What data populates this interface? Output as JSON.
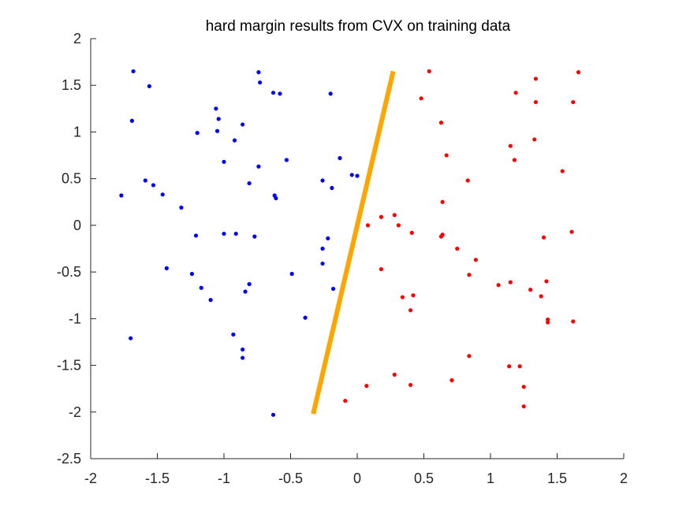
{
  "chart_data": {
    "type": "scatter",
    "title": "hard margin results from CVX on training data",
    "xlabel": "",
    "ylabel": "",
    "xlim": [
      -2,
      2
    ],
    "ylim": [
      -2.5,
      2
    ],
    "xticks": [
      -2,
      -1.5,
      -1,
      -0.5,
      0,
      0.5,
      1,
      1.5,
      2
    ],
    "yticks": [
      -2.5,
      -2,
      -1.5,
      -1,
      -0.5,
      0,
      0.5,
      1,
      1.5,
      2
    ],
    "xtick_labels": [
      "-2",
      "-1.5",
      "-1",
      "-0.5",
      "0",
      "0.5",
      "1",
      "1.5",
      "2"
    ],
    "ytick_labels": [
      "-2.5",
      "-2",
      "-1.5",
      "-1",
      "-0.5",
      "0",
      "0.5",
      "1",
      "1.5",
      "2"
    ],
    "grid": false,
    "box": false,
    "series": [
      {
        "color": "#0000ff",
        "marker": "dot",
        "points": [
          [
            -1.68,
            1.65
          ],
          [
            -1.56,
            1.49
          ],
          [
            -1.69,
            1.12
          ],
          [
            -1.77,
            0.32
          ],
          [
            -1.59,
            0.48
          ],
          [
            -1.53,
            0.43
          ],
          [
            -1.46,
            0.33
          ],
          [
            -1.32,
            0.19
          ],
          [
            -1.7,
            -1.21
          ],
          [
            -1.43,
            -0.46
          ],
          [
            -1.24,
            -0.52
          ],
          [
            -1.2,
            0.99
          ],
          [
            -1.21,
            -0.11
          ],
          [
            -1.17,
            -0.67
          ],
          [
            -1.1,
            -0.8
          ],
          [
            -1.06,
            1.25
          ],
          [
            -1.04,
            1.14
          ],
          [
            -1.05,
            1.01
          ],
          [
            -1.0,
            0.68
          ],
          [
            -1.0,
            -0.09
          ],
          [
            -0.92,
            0.91
          ],
          [
            -0.91,
            -0.09
          ],
          [
            -0.93,
            -1.17
          ],
          [
            -0.86,
            1.08
          ],
          [
            -0.84,
            -0.71
          ],
          [
            -0.86,
            -1.33
          ],
          [
            -0.86,
            -1.42
          ],
          [
            -0.81,
            -0.63
          ],
          [
            -0.81,
            0.45
          ],
          [
            -0.77,
            -0.12
          ],
          [
            -0.74,
            1.64
          ],
          [
            -0.73,
            1.53
          ],
          [
            -0.74,
            0.63
          ],
          [
            -0.63,
            1.42
          ],
          [
            -0.58,
            1.41
          ],
          [
            -0.62,
            0.32
          ],
          [
            -0.61,
            0.29
          ],
          [
            -0.53,
            0.7
          ],
          [
            -0.49,
            -0.52
          ],
          [
            -0.63,
            -2.03
          ],
          [
            -0.39,
            -0.99
          ],
          [
            -0.26,
            0.48
          ],
          [
            -0.26,
            -0.25
          ],
          [
            -0.26,
            -0.41
          ],
          [
            -0.22,
            -0.14
          ],
          [
            -0.2,
            1.41
          ],
          [
            -0.19,
            0.4
          ],
          [
            -0.18,
            -0.68
          ],
          [
            -0.13,
            0.72
          ],
          [
            -0.04,
            0.54
          ],
          [
            0.0,
            0.53
          ]
        ]
      },
      {
        "color": "#ff0000",
        "marker": "dot",
        "points": [
          [
            0.54,
            1.65
          ],
          [
            0.48,
            1.36
          ],
          [
            0.63,
            1.1
          ],
          [
            0.67,
            0.75
          ],
          [
            0.83,
            0.48
          ],
          [
            0.64,
            0.25
          ],
          [
            0.08,
            0.0
          ],
          [
            0.18,
            0.09
          ],
          [
            0.28,
            0.11
          ],
          [
            0.31,
            0.0
          ],
          [
            0.41,
            -0.08
          ],
          [
            0.64,
            -0.1
          ],
          [
            0.63,
            -0.12
          ],
          [
            0.75,
            -0.25
          ],
          [
            0.89,
            -0.37
          ],
          [
            0.84,
            -0.53
          ],
          [
            0.18,
            -0.47
          ],
          [
            0.34,
            -0.77
          ],
          [
            0.42,
            -0.75
          ],
          [
            0.4,
            -0.91
          ],
          [
            0.28,
            -1.6
          ],
          [
            0.4,
            -1.71
          ],
          [
            0.07,
            -1.72
          ],
          [
            -0.09,
            -1.88
          ],
          [
            0.71,
            -1.66
          ],
          [
            0.84,
            -1.4
          ],
          [
            1.06,
            -0.64
          ],
          [
            1.15,
            -0.61
          ],
          [
            1.15,
            0.85
          ],
          [
            1.18,
            0.7
          ],
          [
            1.19,
            1.42
          ],
          [
            1.34,
            1.57
          ],
          [
            1.34,
            1.32
          ],
          [
            1.33,
            0.92
          ],
          [
            1.54,
            0.58
          ],
          [
            1.4,
            -0.13
          ],
          [
            1.61,
            -0.07
          ],
          [
            1.62,
            1.32
          ],
          [
            1.66,
            1.64
          ],
          [
            1.42,
            -0.6
          ],
          [
            1.3,
            -0.69
          ],
          [
            1.38,
            -0.76
          ],
          [
            1.43,
            -1.01
          ],
          [
            1.43,
            -1.04
          ],
          [
            1.62,
            -1.03
          ],
          [
            1.14,
            -1.51
          ],
          [
            1.22,
            -1.51
          ],
          [
            1.25,
            -1.73
          ],
          [
            1.25,
            -1.94
          ]
        ]
      }
    ],
    "decision_boundary": {
      "color": "#ffa500",
      "x": [
        -0.33,
        0.27
      ],
      "y": [
        -2.02,
        1.65
      ]
    }
  }
}
